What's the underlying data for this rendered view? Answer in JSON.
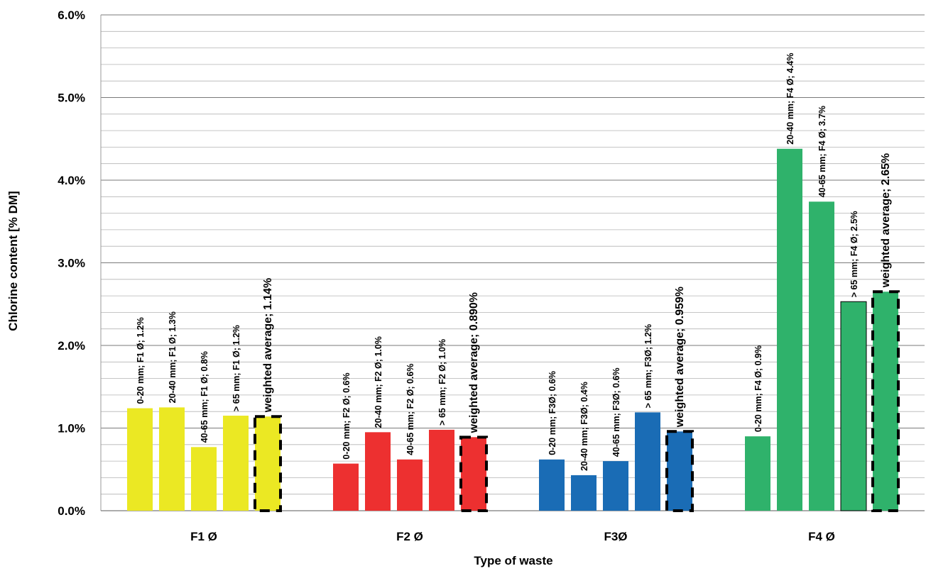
{
  "chart_data": {
    "type": "bar",
    "title": "",
    "ylabel": "Chlorine content [% DM]",
    "xlabel": "Type of waste",
    "ylim": [
      0,
      6
    ],
    "y_ticks": [
      "0.0%",
      "1.0%",
      "2.0%",
      "3.0%",
      "4.0%",
      "5.0%",
      "6.0%"
    ],
    "grid": "horizontal major and minor",
    "groups": [
      {
        "category": "F1 Ø",
        "color": "#ebe823",
        "bars": [
          {
            "label": "0-20 mm; F1 Ø; 1.2%",
            "value": 1.24,
            "weighted": false
          },
          {
            "label": "20-40 mm; F1 Ø; 1.3%",
            "value": 1.25,
            "weighted": false
          },
          {
            "label": "40-65 mm; F1 Ø; 0.8%",
            "value": 0.77,
            "weighted": false
          },
          {
            "label": "> 65 mm; F1 Ø; 1.2%",
            "value": 1.15,
            "weighted": false
          },
          {
            "label": "weighted average; 1.14%",
            "value": 1.14,
            "weighted": true
          }
        ]
      },
      {
        "category": "F2 Ø",
        "color": "#ed3030",
        "bars": [
          {
            "label": "0-20 mm; F2 Ø; 0.6%",
            "value": 0.57,
            "weighted": false
          },
          {
            "label": "20-40 mm; F2 Ø; 1.0%",
            "value": 0.95,
            "weighted": false
          },
          {
            "label": "40-65 mm; F2 Ø; 0.6%",
            "value": 0.62,
            "weighted": false
          },
          {
            "label": "> 65 mm; F2 Ø; 1.0%",
            "value": 0.98,
            "weighted": false
          },
          {
            "label": "weighted average; 0.890%",
            "value": 0.89,
            "weighted": true
          }
        ]
      },
      {
        "category": "F3Ø",
        "color": "#1a6cb5",
        "bars": [
          {
            "label": "0-20 mm; F3Ø; 0.6%",
            "value": 0.62,
            "weighted": false
          },
          {
            "label": "20-40 mm; F3Ø; 0.4%",
            "value": 0.43,
            "weighted": false
          },
          {
            "label": "40-65 mm; F3Ø; 0.6%",
            "value": 0.6,
            "weighted": false
          },
          {
            "label": "> 65 mm; F3Ø; 1.2%",
            "value": 1.19,
            "weighted": false
          },
          {
            "label": "weighted average; 0.959%",
            "value": 0.959,
            "weighted": true
          }
        ]
      },
      {
        "category": "F4 Ø",
        "color": "#2fb26b",
        "bars": [
          {
            "label": "0-20 mm; F4 Ø; 0.9%",
            "value": 0.9,
            "weighted": false
          },
          {
            "label": "20-40 mm; F4 Ø; 4.4%",
            "value": 4.38,
            "weighted": false
          },
          {
            "label": "40-65 mm; F4 Ø; 3.7%",
            "value": 3.74,
            "weighted": false
          },
          {
            "label": "> 65 mm; F4 Ø; 2.5%",
            "value": 2.53,
            "weighted": false
          },
          {
            "label": "weighted average; 2.65%",
            "value": 2.65,
            "weighted": true
          }
        ]
      }
    ]
  }
}
